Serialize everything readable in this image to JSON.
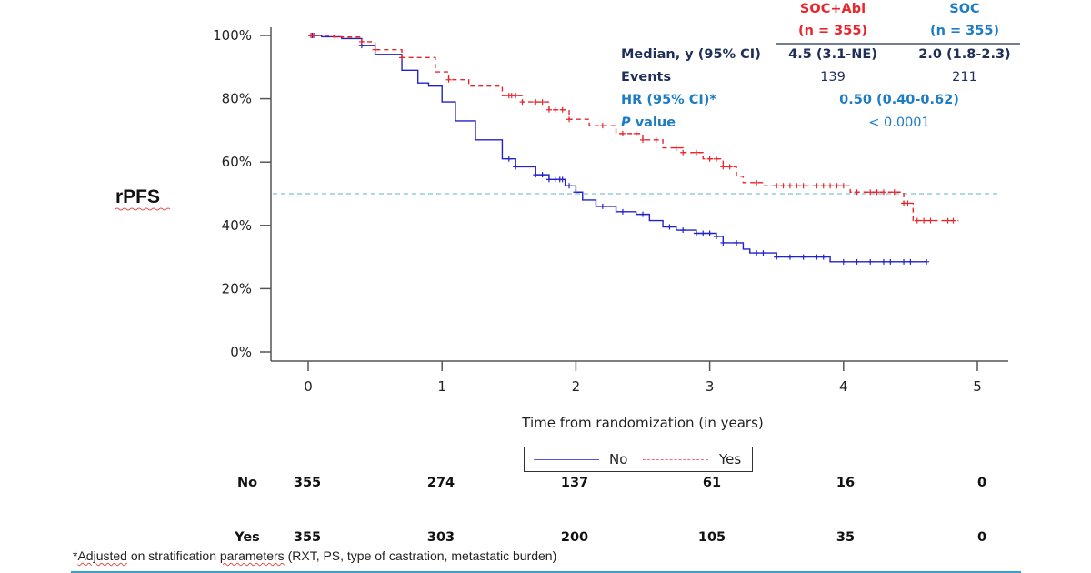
{
  "chart_data": {
    "type": "line",
    "subtype": "kaplan-meier",
    "ylabel": "rPFS",
    "xlabel": "Time from randomization (in years)",
    "xlim": [
      0,
      5
    ],
    "ylim": [
      0,
      100
    ],
    "x_ticks": [
      "0",
      "1",
      "2",
      "3",
      "4",
      "5"
    ],
    "y_ticks": [
      "0%",
      "20%",
      "40%",
      "60%",
      "80%",
      "100%"
    ],
    "reference_line": {
      "y": 50,
      "style": "dashed",
      "color": "#7fc4d4"
    },
    "grid": false,
    "legend_position": "bottom-center",
    "series": [
      {
        "name": "No",
        "color": "#2222cc",
        "style": "solid",
        "points": [
          [
            0,
            100
          ],
          [
            0.1,
            99.6
          ],
          [
            0.25,
            99
          ],
          [
            0.4,
            96.8
          ],
          [
            0.5,
            94
          ],
          [
            0.7,
            89
          ],
          [
            0.82,
            85
          ],
          [
            0.9,
            84
          ],
          [
            1.0,
            79
          ],
          [
            1.1,
            73
          ],
          [
            1.25,
            67
          ],
          [
            1.45,
            61
          ],
          [
            1.55,
            58.5
          ],
          [
            1.7,
            56
          ],
          [
            1.8,
            54.5
          ],
          [
            1.92,
            52.5
          ],
          [
            2.0,
            50.5
          ],
          [
            2.05,
            48
          ],
          [
            2.15,
            46
          ],
          [
            2.3,
            44.3
          ],
          [
            2.45,
            43.5
          ],
          [
            2.55,
            41.5
          ],
          [
            2.65,
            39.5
          ],
          [
            2.75,
            38.5
          ],
          [
            2.9,
            37.5
          ],
          [
            3.05,
            36.5
          ],
          [
            3.1,
            34.5
          ],
          [
            3.25,
            32.5
          ],
          [
            3.3,
            31.3
          ],
          [
            3.5,
            30
          ],
          [
            3.9,
            28.5
          ],
          [
            4.62,
            28.5
          ]
        ],
        "censor_times": [
          0.03,
          0.05,
          0.4,
          1.5,
          1.55,
          1.7,
          1.75,
          1.8,
          1.85,
          1.88,
          1.9,
          1.95,
          2.0,
          2.2,
          2.35,
          2.5,
          2.7,
          2.8,
          2.9,
          2.95,
          3.0,
          3.05,
          3.1,
          3.2,
          3.35,
          3.4,
          3.5,
          3.6,
          3.7,
          3.8,
          3.85,
          4.0,
          4.1,
          4.2,
          4.3,
          4.35,
          4.45,
          4.5,
          4.62
        ]
      },
      {
        "name": "Yes",
        "color": "#e8262c",
        "style": "dashed",
        "points": [
          [
            0,
            100
          ],
          [
            0.2,
            99.5
          ],
          [
            0.4,
            98
          ],
          [
            0.5,
            95.5
          ],
          [
            0.7,
            93
          ],
          [
            0.95,
            88.5
          ],
          [
            1.05,
            86
          ],
          [
            1.2,
            84
          ],
          [
            1.45,
            81
          ],
          [
            1.6,
            79
          ],
          [
            1.8,
            76.5
          ],
          [
            1.95,
            73.5
          ],
          [
            2.1,
            71.5
          ],
          [
            2.3,
            69
          ],
          [
            2.5,
            67
          ],
          [
            2.65,
            64.5
          ],
          [
            2.8,
            63
          ],
          [
            2.95,
            61
          ],
          [
            3.1,
            58.5
          ],
          [
            3.2,
            55.5
          ],
          [
            3.25,
            53.5
          ],
          [
            3.4,
            52.5
          ],
          [
            4.05,
            50.5
          ],
          [
            4.45,
            47
          ],
          [
            4.52,
            41.5
          ],
          [
            4.86,
            41.5
          ]
        ],
        "censor_times": [
          0.02,
          0.04,
          0.2,
          0.4,
          0.5,
          0.7,
          1.05,
          1.5,
          1.52,
          1.55,
          1.6,
          1.7,
          1.75,
          1.8,
          1.85,
          1.9,
          1.95,
          2.2,
          2.35,
          2.45,
          2.5,
          2.6,
          2.75,
          2.8,
          2.9,
          3.0,
          3.05,
          3.1,
          3.15,
          3.35,
          3.5,
          3.55,
          3.6,
          3.65,
          3.7,
          3.8,
          3.85,
          3.9,
          3.95,
          4.0,
          4.1,
          4.2,
          4.25,
          4.3,
          4.38,
          4.45,
          4.48,
          4.55,
          4.6,
          4.65,
          4.78,
          4.82
        ]
      }
    ]
  },
  "legend": {
    "items": [
      {
        "label": "No",
        "color": "#2222cc",
        "style": "solid"
      },
      {
        "label": "Yes",
        "color": "#e8262c",
        "style": "dashed"
      }
    ]
  },
  "stats_table": {
    "col1_header": "SOC+Abi",
    "col1_n": "(n = 355)",
    "col2_header": "SOC",
    "col2_n": "(n = 355)",
    "rows": [
      {
        "label": "Median, y (95% CI)",
        "col1": "4.5 (3.1-NE)",
        "col2": "2.0 (1.8-2.3)"
      },
      {
        "label": "Events",
        "col1": "139",
        "col2": "211"
      },
      {
        "label": "HR (95% CI)*",
        "value": "0.50 (0.40-0.62)"
      },
      {
        "label_italic": "P",
        "label_rest": " value",
        "value": "< 0.0001"
      }
    ]
  },
  "risk_table": {
    "rows": [
      {
        "label": "No",
        "values": [
          "355",
          "274",
          "137",
          "61",
          "16",
          "0"
        ]
      },
      {
        "label": "Yes",
        "values": [
          "355",
          "303",
          "200",
          "105",
          "35",
          "0"
        ]
      }
    ]
  },
  "footnote": {
    "prefix": "*",
    "word1": "Adjusted",
    "mid": " on stratification ",
    "word2": "parameters",
    "rest": " (RXT, PS, type of castration, metastatic burden)"
  }
}
